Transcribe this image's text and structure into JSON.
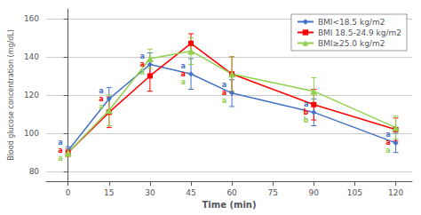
{
  "chart_data": {
    "type": "line",
    "xlabel": "Time (min)",
    "ylabel": "Blood glucose concentration (mg/dL)",
    "x": [
      0,
      15,
      30,
      45,
      60,
      90,
      120
    ],
    "series": [
      {
        "name": "BMI<18.5 kg/m2",
        "color": "#4472C4",
        "marker": "diamond",
        "values": [
          91,
          118,
          136,
          131,
          121,
          111,
          95
        ],
        "errors": [
          2,
          6,
          6,
          8,
          7,
          7,
          5
        ],
        "annotations": [
          "a",
          "a",
          "a",
          "a",
          "a",
          "a",
          "a"
        ]
      },
      {
        "name": "BMI 18.5-24.9 kg/m2",
        "color": "#FF0000",
        "marker": "square",
        "values": [
          90,
          111,
          130,
          147,
          131,
          115,
          102
        ],
        "errors": [
          2,
          8,
          8,
          5,
          9,
          8,
          6
        ],
        "annotations": [
          "a",
          "a",
          "a",
          "a",
          "a",
          "b",
          "a"
        ]
      },
      {
        "name": "BMI≥25.0 kg/m2",
        "color": "#92D050",
        "marker": "triangle",
        "values": [
          90,
          112,
          139,
          143,
          131,
          122,
          103
        ],
        "errors": [
          2,
          8,
          5,
          7,
          9,
          7,
          6
        ],
        "annotations": [
          "a",
          "a",
          "a",
          "a",
          "a",
          "b",
          "a"
        ]
      }
    ],
    "xlim": [
      -8,
      126
    ],
    "xticks": [
      0,
      15,
      30,
      45,
      60,
      75,
      90,
      105,
      120
    ],
    "ylim": [
      75,
      165
    ],
    "yticks": [
      80,
      100,
      120,
      140,
      160
    ],
    "grid": "y",
    "legend": "upper right"
  }
}
